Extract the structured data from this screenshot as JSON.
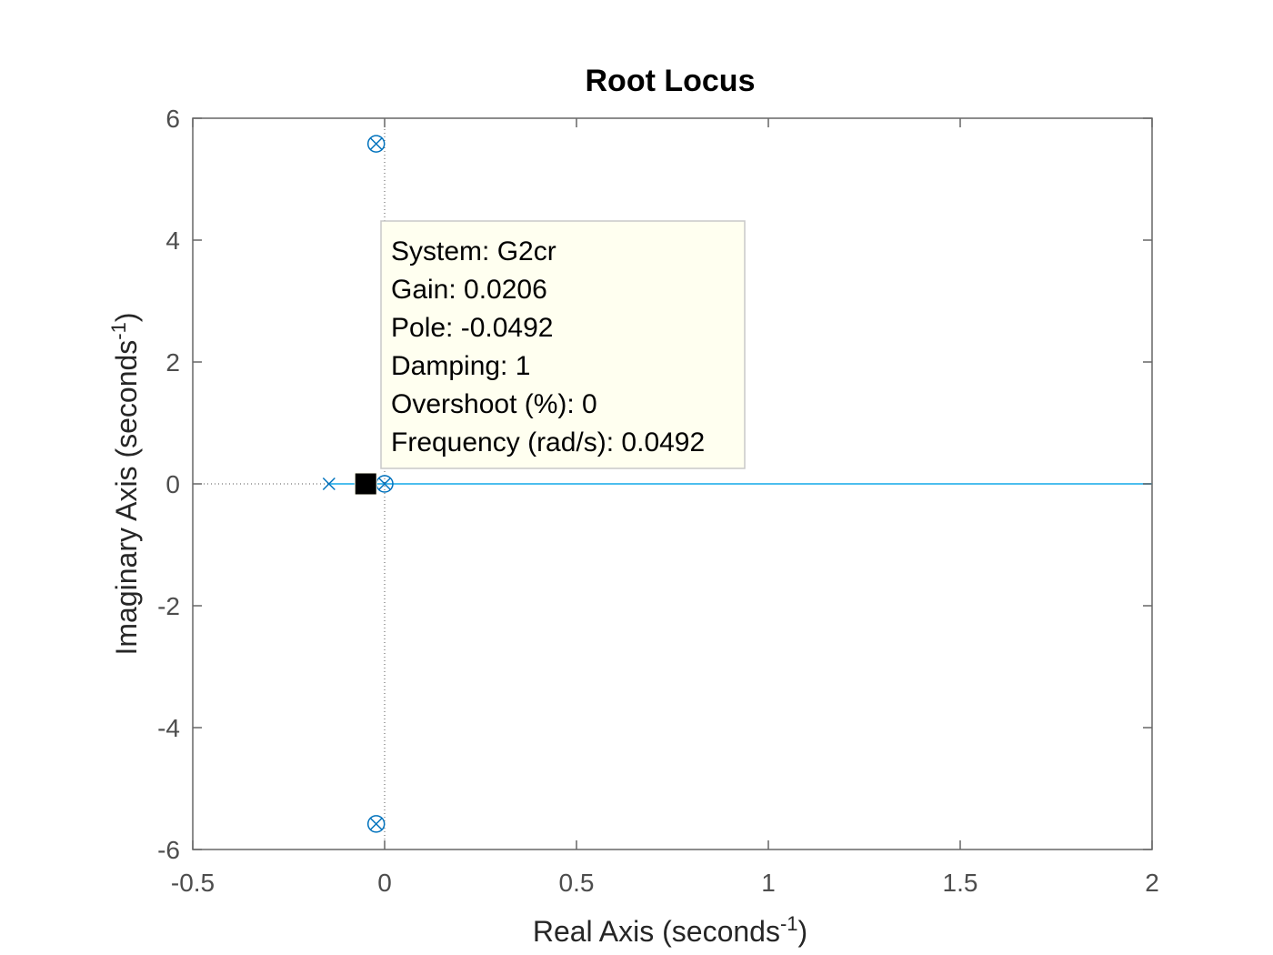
{
  "colors": {
    "locus": "#0072bd",
    "locus_real_axis": "#4dbeee",
    "axes": "#666666",
    "ticks_text": "#4d4d4d",
    "tooltip_bg": "#fffff0",
    "tooltip_border": "#c8c8c8"
  },
  "chart_data": {
    "type": "scatter",
    "title": "Root Locus",
    "xlabel": "Real Axis (seconds",
    "xlabel_sup": "-1",
    "xlabel_close": ")",
    "ylabel": "Imaginary Axis (seconds",
    "ylabel_sup": "-1",
    "ylabel_close": ")",
    "xlim": [
      -0.5,
      2
    ],
    "ylim": [
      -6,
      6
    ],
    "xticks": [
      -0.5,
      0,
      0.5,
      1,
      1.5,
      2
    ],
    "xtick_labels": [
      "-0.5",
      "0",
      "0.5",
      "1",
      "1.5",
      "2"
    ],
    "yticks": [
      -6,
      -4,
      -2,
      0,
      2,
      4,
      6
    ],
    "ytick_labels": [
      "-6",
      "-4",
      "-2",
      "0",
      "2",
      "4",
      "6"
    ],
    "grid": false,
    "poles": [
      {
        "re": -0.145,
        "im": 0
      },
      {
        "re": 0,
        "im": 0
      },
      {
        "re": -0.022,
        "im": 5.58
      },
      {
        "re": -0.022,
        "im": -5.58
      }
    ],
    "zeros": [
      {
        "re": 0,
        "im": 0
      },
      {
        "re": -0.022,
        "im": 5.58
      },
      {
        "re": -0.022,
        "im": -5.58
      }
    ],
    "locus_segments": [
      {
        "x": [
          -0.145,
          2
        ],
        "y": [
          0,
          0
        ]
      }
    ],
    "selected_point": {
      "re": -0.0492,
      "im": 0
    }
  },
  "tooltip": {
    "lines": [
      "System: G2cr",
      "Gain: 0.0206",
      "Pole: -0.0492",
      "Damping: 1",
      "Overshoot (%): 0",
      "Frequency (rad/s): 0.0492"
    ]
  }
}
